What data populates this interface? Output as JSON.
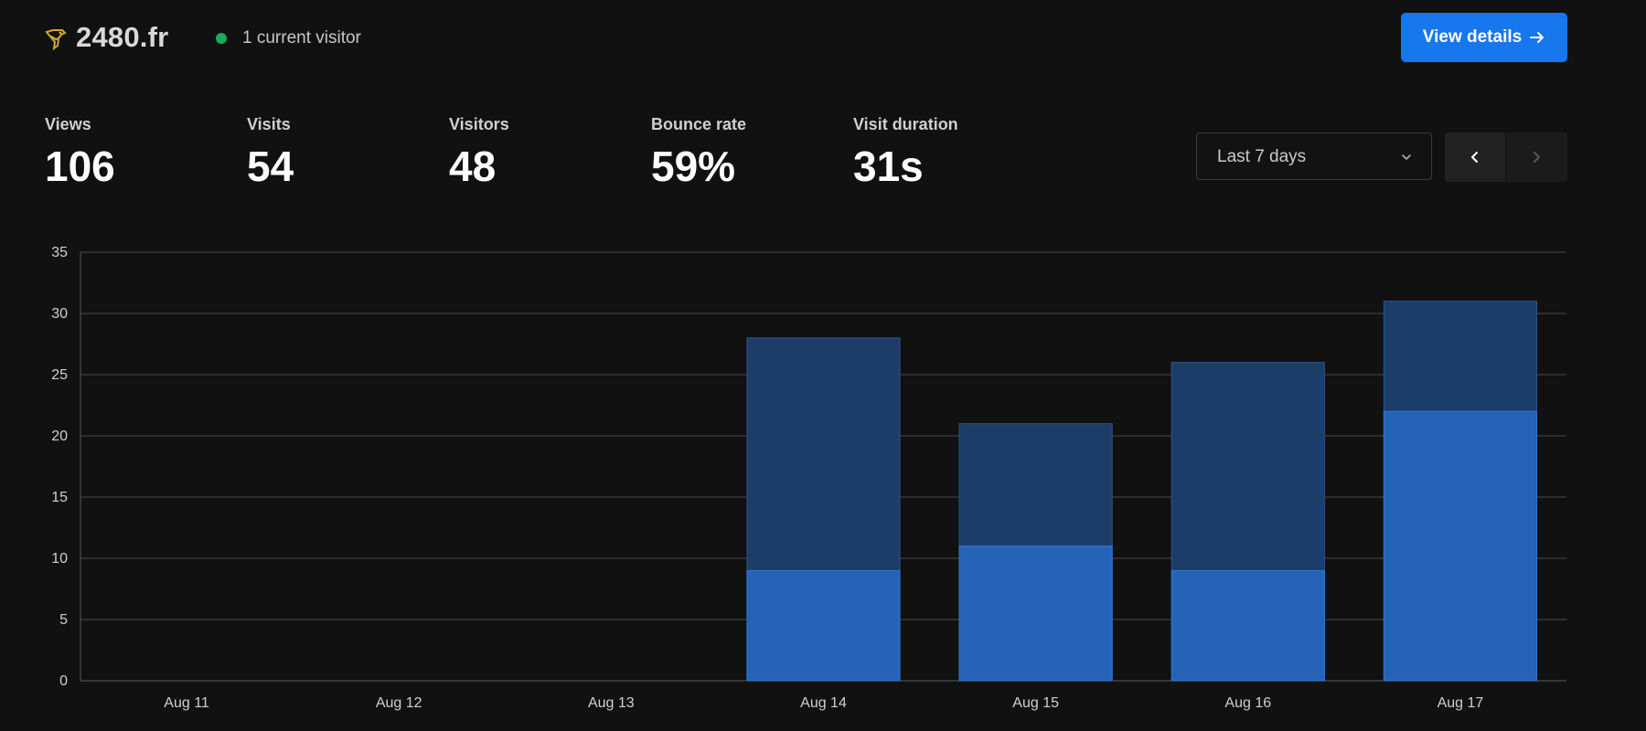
{
  "header": {
    "site_name": "2480.fr",
    "visitor_text": "1 current visitor",
    "view_details_label": "View details"
  },
  "metrics": [
    {
      "label": "Views",
      "value": "106"
    },
    {
      "label": "Visits",
      "value": "54"
    },
    {
      "label": "Visitors",
      "value": "48"
    },
    {
      "label": "Bounce rate",
      "value": "59%"
    },
    {
      "label": "Visit duration",
      "value": "31s"
    }
  ],
  "controls": {
    "range_label": "Last 7 days"
  },
  "icons": {
    "logo": "lion-logo-icon",
    "live": "live-dot-icon",
    "details_arrow": "arrow-right-icon",
    "dropdown": "chevron-down-icon",
    "previous": "chevron-left-icon",
    "next": "chevron-right-icon"
  },
  "colors": {
    "background": "#111111",
    "accent": "#1677ee",
    "live": "#19a95f",
    "logo": "#d6a72c",
    "bar_primary": "#2463b5",
    "bar_secondary": "#1c3d69",
    "grid": "#4a4a4a"
  },
  "chart_data": {
    "type": "bar",
    "categories": [
      "Aug 11",
      "Aug 12",
      "Aug 13",
      "Aug 14",
      "Aug 15",
      "Aug 16",
      "Aug 17"
    ],
    "series": [
      {
        "values": [
          0,
          0,
          0,
          28,
          21,
          26,
          31
        ]
      },
      {
        "values": [
          0,
          0,
          0,
          9,
          11,
          9,
          22
        ]
      }
    ],
    "ylim": [
      0,
      35
    ],
    "yticks": [
      0,
      5,
      10,
      15,
      20,
      25,
      30,
      35
    ],
    "grid": true
  }
}
